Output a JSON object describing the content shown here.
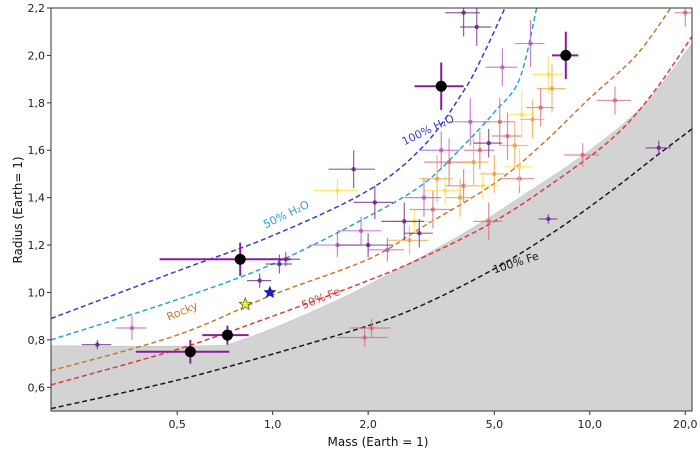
{
  "chart_data": {
    "type": "scatter",
    "xlabel": "Mass (Earth = 1)",
    "ylabel": "Radius (Earth= 1)",
    "x_scale": "log",
    "xlim": [
      0.2,
      21
    ],
    "ylim": [
      0.5,
      2.2
    ],
    "x_ticks": [
      {
        "value": 0.5,
        "label": "0,5"
      },
      {
        "value": 1,
        "label": "1,0"
      },
      {
        "value": 2,
        "label": "2,0"
      },
      {
        "value": 5,
        "label": "5,0"
      },
      {
        "value": 10,
        "label": "10,0"
      },
      {
        "value": 20,
        "label": "20,0"
      }
    ],
    "y_ticks": [
      {
        "value": 0.6,
        "label": "0,6"
      },
      {
        "value": 0.8,
        "label": "0,8"
      },
      {
        "value": 1.0,
        "label": "1,0"
      },
      {
        "value": 1.2,
        "label": "1,2"
      },
      {
        "value": 1.4,
        "label": "1,4"
      },
      {
        "value": 1.6,
        "label": "1,6"
      },
      {
        "value": 1.8,
        "label": "1,8"
      },
      {
        "value": 2.0,
        "label": "2,0"
      },
      {
        "value": 2.2,
        "label": "2,2"
      }
    ],
    "excluded_region": {
      "color": "#d3d3d3",
      "boundary": [
        [
          0.2,
          0.775
        ],
        [
          0.6,
          0.775
        ],
        [
          0.8,
          0.8
        ],
        [
          1.5,
          0.95
        ],
        [
          2.5,
          1.1
        ],
        [
          4,
          1.25
        ],
        [
          6,
          1.4
        ],
        [
          10,
          1.6
        ],
        [
          15,
          1.8
        ],
        [
          21,
          2.05
        ]
      ]
    },
    "curves": [
      {
        "label": "100% H₂O",
        "color": "#3a3ad6",
        "label_at": [
          2.6,
          1.62
        ],
        "points": [
          [
            0.2,
            0.89
          ],
          [
            0.5,
            1.09
          ],
          [
            1,
            1.24
          ],
          [
            2,
            1.43
          ],
          [
            3,
            1.62
          ],
          [
            4,
            1.85
          ],
          [
            4.6,
            2.0
          ],
          [
            5.4,
            2.2
          ]
        ]
      },
      {
        "label": "50% H₂O",
        "color": "#2aa4d4",
        "label_at": [
          0.95,
          1.27
        ],
        "points": [
          [
            0.2,
            0.8
          ],
          [
            0.5,
            0.97
          ],
          [
            1,
            1.12
          ],
          [
            2,
            1.32
          ],
          [
            3,
            1.46
          ],
          [
            4,
            1.62
          ],
          [
            5,
            1.76
          ],
          [
            6,
            1.9
          ],
          [
            6.8,
            2.2
          ]
        ]
      },
      {
        "label": "Rocky",
        "color": "#c8782f",
        "label_at": [
          0.47,
          0.88
        ],
        "points": [
          [
            0.2,
            0.67
          ],
          [
            0.5,
            0.82
          ],
          [
            1,
            0.99
          ],
          [
            2,
            1.14
          ],
          [
            3,
            1.28
          ],
          [
            5,
            1.46
          ],
          [
            7,
            1.62
          ],
          [
            10,
            1.82
          ],
          [
            14,
            2.0
          ],
          [
            18,
            2.2
          ]
        ]
      },
      {
        "label": "50% Fe",
        "color": "#e03b3b",
        "label_at": [
          1.25,
          0.93
        ],
        "points": [
          [
            0.2,
            0.61
          ],
          [
            0.5,
            0.76
          ],
          [
            1,
            0.9
          ],
          [
            2,
            1.05
          ],
          [
            3,
            1.15
          ],
          [
            5,
            1.3
          ],
          [
            8,
            1.48
          ],
          [
            12,
            1.66
          ],
          [
            16,
            1.85
          ],
          [
            21,
            2.08
          ]
        ]
      },
      {
        "label": "100% Fe",
        "color": "#1a1a1a",
        "label_at": [
          5.0,
          1.08
        ],
        "points": [
          [
            0.2,
            0.51
          ],
          [
            0.5,
            0.63
          ],
          [
            1,
            0.74
          ],
          [
            2,
            0.86
          ],
          [
            3,
            0.95
          ],
          [
            5,
            1.1
          ],
          [
            8,
            1.27
          ],
          [
            12,
            1.44
          ],
          [
            16,
            1.57
          ],
          [
            21,
            1.69
          ]
        ]
      }
    ],
    "series": [
      {
        "role": "highlighted",
        "color": "#000000",
        "points": [
          {
            "x": 0.79,
            "y": 1.14,
            "xerr": 0.35,
            "yerr": 0.07
          },
          {
            "x": 0.72,
            "y": 0.82,
            "xerr": 0.12,
            "yerr": 0.04
          },
          {
            "x": 0.55,
            "y": 0.75,
            "xerr": 0.18,
            "yerr": 0.05
          },
          {
            "x": 3.4,
            "y": 1.87,
            "xerr": 0.6,
            "yerr": 0.1
          },
          {
            "x": 8.4,
            "y": 2.0,
            "xerr": 0.8,
            "yerr": 0.1
          }
        ]
      },
      {
        "role": "star-blue",
        "color": "#1820c8",
        "points": [
          {
            "x": 0.98,
            "y": 1.0
          }
        ]
      },
      {
        "role": "star-yellow",
        "color": "#f2e84a",
        "points": [
          {
            "x": 0.82,
            "y": 0.95
          }
        ]
      },
      {
        "role": "purple",
        "color": "#6a2a90",
        "points": [
          {
            "x": 0.28,
            "y": 0.78,
            "xerr": 0.03,
            "yerr": 0.02
          },
          {
            "x": 0.91,
            "y": 1.05,
            "xerr": 0.08,
            "yerr": 0.03
          },
          {
            "x": 1.05,
            "y": 1.12,
            "xerr": 0.1,
            "yerr": 0.04
          },
          {
            "x": 1.1,
            "y": 1.14,
            "xerr": 0.12,
            "yerr": 0.03
          },
          {
            "x": 1.8,
            "y": 1.52,
            "xerr": 0.3,
            "yerr": 0.08
          },
          {
            "x": 2.1,
            "y": 1.38,
            "xerr": 0.3,
            "yerr": 0.07
          },
          {
            "x": 2.6,
            "y": 1.3,
            "xerr": 0.4,
            "yerr": 0.08
          },
          {
            "x": 2.9,
            "y": 1.25,
            "xerr": 0.3,
            "yerr": 0.06
          },
          {
            "x": 4.4,
            "y": 2.12,
            "xerr": 0.5,
            "yerr": 0.08
          },
          {
            "x": 4.8,
            "y": 1.63,
            "xerr": 0.5,
            "yerr": 0.06
          },
          {
            "x": 7.4,
            "y": 1.31,
            "xerr": 0.5,
            "yerr": 0.02
          },
          {
            "x": 16.5,
            "y": 1.61,
            "xerr": 1.5,
            "yerr": 0.03
          },
          {
            "x": 4.0,
            "y": 2.18,
            "xerr": 0.5,
            "yerr": 0.1
          },
          {
            "x": 2.0,
            "y": 1.2,
            "xerr": 0.4,
            "yerr": 0.05
          }
        ]
      },
      {
        "role": "violet",
        "color": "#b55fc8",
        "points": [
          {
            "x": 0.36,
            "y": 0.85,
            "xerr": 0.04,
            "yerr": 0.05
          },
          {
            "x": 1.6,
            "y": 1.2,
            "xerr": 0.3,
            "yerr": 0.05
          },
          {
            "x": 1.9,
            "y": 1.26,
            "xerr": 0.3,
            "yerr": 0.06
          },
          {
            "x": 3.4,
            "y": 1.6,
            "xerr": 0.5,
            "yerr": 0.08
          },
          {
            "x": 4.2,
            "y": 1.72,
            "xerr": 0.6,
            "yerr": 0.1
          },
          {
            "x": 5.3,
            "y": 1.95,
            "xerr": 0.6,
            "yerr": 0.08
          },
          {
            "x": 6.5,
            "y": 2.05,
            "xerr": 0.7,
            "yerr": 0.1
          },
          {
            "x": 3.0,
            "y": 1.4,
            "xerr": 0.4,
            "yerr": 0.08
          },
          {
            "x": 2.3,
            "y": 1.18,
            "xerr": 0.3,
            "yerr": 0.05
          }
        ]
      },
      {
        "role": "pink",
        "color": "#d86a78",
        "points": [
          {
            "x": 2.05,
            "y": 0.85,
            "xerr": 0.3,
            "yerr": 0.04
          },
          {
            "x": 1.95,
            "y": 0.81,
            "xerr": 0.35,
            "yerr": 0.04
          },
          {
            "x": 3.6,
            "y": 1.55,
            "xerr": 0.6,
            "yerr": 0.1
          },
          {
            "x": 4.5,
            "y": 1.6,
            "xerr": 0.5,
            "yerr": 0.08
          },
          {
            "x": 5.2,
            "y": 1.72,
            "xerr": 0.6,
            "yerr": 0.1
          },
          {
            "x": 6.0,
            "y": 1.48,
            "xerr": 0.7,
            "yerr": 0.06
          },
          {
            "x": 4.8,
            "y": 1.3,
            "xerr": 0.5,
            "yerr": 0.08
          },
          {
            "x": 9.5,
            "y": 1.58,
            "xerr": 1.2,
            "yerr": 0.05
          },
          {
            "x": 12.0,
            "y": 1.81,
            "xerr": 1.5,
            "yerr": 0.06
          },
          {
            "x": 20.0,
            "y": 2.18,
            "xerr": 1.5,
            "yerr": 0.06
          },
          {
            "x": 3.2,
            "y": 1.35,
            "xerr": 0.5,
            "yerr": 0.08
          },
          {
            "x": 4.0,
            "y": 1.45,
            "xerr": 0.5,
            "yerr": 0.07
          },
          {
            "x": 5.5,
            "y": 1.66,
            "xerr": 0.6,
            "yerr": 0.1
          },
          {
            "x": 7.0,
            "y": 1.78,
            "xerr": 0.7,
            "yerr": 0.08
          }
        ]
      },
      {
        "role": "orange",
        "color": "#f0a24a",
        "points": [
          {
            "x": 2.7,
            "y": 1.22,
            "xerr": 0.4,
            "yerr": 0.06
          },
          {
            "x": 3.3,
            "y": 1.48,
            "xerr": 0.4,
            "yerr": 0.1
          },
          {
            "x": 4.3,
            "y": 1.55,
            "xerr": 0.5,
            "yerr": 0.1
          },
          {
            "x": 5.0,
            "y": 1.5,
            "xerr": 0.5,
            "yerr": 0.08
          },
          {
            "x": 5.8,
            "y": 1.62,
            "xerr": 0.6,
            "yerr": 0.1
          },
          {
            "x": 6.6,
            "y": 1.73,
            "xerr": 0.6,
            "yerr": 0.08
          },
          {
            "x": 7.6,
            "y": 1.86,
            "xerr": 0.8,
            "yerr": 0.1
          },
          {
            "x": 3.9,
            "y": 1.4,
            "xerr": 0.4,
            "yerr": 0.08
          }
        ]
      },
      {
        "role": "yellow",
        "color": "#f4e04a",
        "points": [
          {
            "x": 1.6,
            "y": 1.43,
            "xerr": 0.25,
            "yerr": 0.05
          },
          {
            "x": 3.5,
            "y": 1.43,
            "xerr": 0.5,
            "yerr": 0.06
          },
          {
            "x": 4.6,
            "y": 1.45,
            "xerr": 0.6,
            "yerr": 0.06
          },
          {
            "x": 6.1,
            "y": 1.75,
            "xerr": 0.6,
            "yerr": 0.1
          },
          {
            "x": 7.4,
            "y": 1.92,
            "xerr": 0.8,
            "yerr": 0.08
          },
          {
            "x": 2.8,
            "y": 1.3,
            "xerr": 0.4,
            "yerr": 0.05
          },
          {
            "x": 6.0,
            "y": 1.53,
            "xerr": 0.6,
            "yerr": 0.08
          }
        ]
      }
    ]
  }
}
